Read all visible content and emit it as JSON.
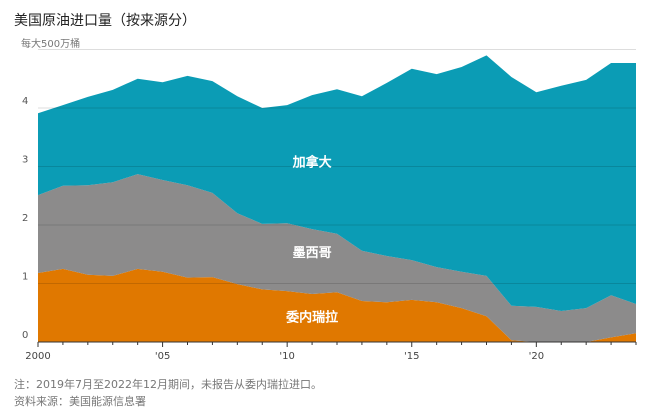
{
  "chart_data": {
    "type": "area",
    "title": "美国原油进口量（按来源分）",
    "ylabel": "每大500万桶",
    "xlabel": "",
    "ylim": [
      0,
      5
    ],
    "xlim": [
      2000,
      2024
    ],
    "stacked": true,
    "grid": true,
    "x": [
      2000,
      2001,
      2002,
      2003,
      2004,
      2005,
      2006,
      2007,
      2008,
      2009,
      2010,
      2011,
      2012,
      2013,
      2014,
      2015,
      2016,
      2017,
      2018,
      2019,
      2020,
      2021,
      2022,
      2023,
      2024
    ],
    "x_ticks": [
      {
        "value": 2000,
        "label": "2000"
      },
      {
        "value": 2005,
        "label": "'05"
      },
      {
        "value": 2010,
        "label": "'10"
      },
      {
        "value": 2015,
        "label": "'15"
      },
      {
        "value": 2020,
        "label": "'20"
      }
    ],
    "y_ticks": [
      0,
      1,
      2,
      3,
      4
    ],
    "series": [
      {
        "name": "委内瑞拉",
        "color": "#e07800",
        "values": [
          1.18,
          1.25,
          1.15,
          1.13,
          1.25,
          1.2,
          1.1,
          1.11,
          0.99,
          0.9,
          0.87,
          0.82,
          0.85,
          0.7,
          0.68,
          0.72,
          0.68,
          0.58,
          0.44,
          0.03,
          0,
          0,
          0,
          0.08,
          0.15
        ]
      },
      {
        "name": "墨西哥",
        "color": "#8c8b8b",
        "values": [
          1.33,
          1.42,
          1.53,
          1.6,
          1.62,
          1.57,
          1.58,
          1.44,
          1.21,
          1.12,
          1.16,
          1.11,
          1.0,
          0.86,
          0.79,
          0.68,
          0.6,
          0.62,
          0.69,
          0.59,
          0.6,
          0.53,
          0.58,
          0.72,
          0.5
        ]
      },
      {
        "name": "加拿大",
        "color": "#0b9cb5",
        "values": [
          1.4,
          1.38,
          1.51,
          1.58,
          1.63,
          1.67,
          1.87,
          1.91,
          2.0,
          1.98,
          2.02,
          2.29,
          2.47,
          2.64,
          2.96,
          3.27,
          3.3,
          3.5,
          3.77,
          3.91,
          3.67,
          3.85,
          3.9,
          3.97,
          4.12
        ]
      }
    ]
  },
  "notes": {
    "note": "注：2019年7月至2022年12月期间，未报告从委内瑞拉进口。",
    "source": "资料来源：美国能源信息署"
  }
}
